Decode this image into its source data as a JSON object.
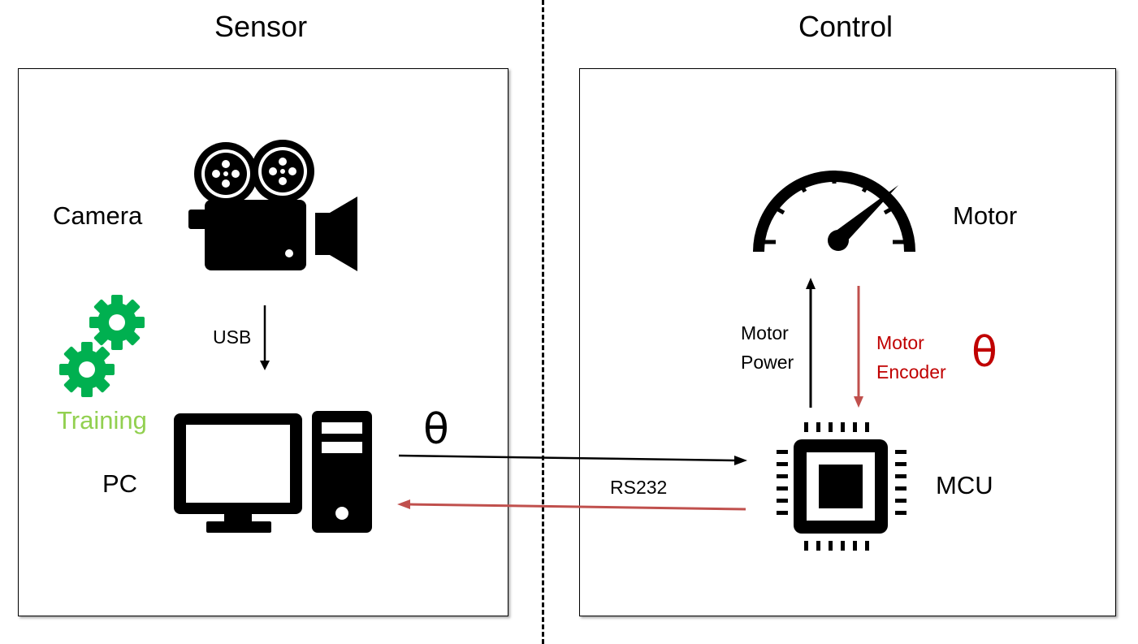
{
  "sections": {
    "sensor": "Sensor",
    "control": "Control"
  },
  "labels": {
    "camera": "Camera",
    "pc": "PC",
    "training": "Training",
    "usb": "USB",
    "motor": "Motor",
    "mcu": "MCU",
    "rs232": "RS232",
    "motor_power": [
      "Motor",
      "Power"
    ],
    "motor_encoder": [
      "Motor",
      "Encoder"
    ],
    "theta": "θ"
  },
  "colors": {
    "black": "#000000",
    "green_gear": "#00b050",
    "training_text": "#92d050",
    "feedback_red": "#c0504d",
    "encoder_text": "#c00000"
  },
  "icons": [
    "video-camera-icon",
    "gear-icon",
    "desktop-computer-icon",
    "speedometer-icon",
    "microchip-icon"
  ]
}
